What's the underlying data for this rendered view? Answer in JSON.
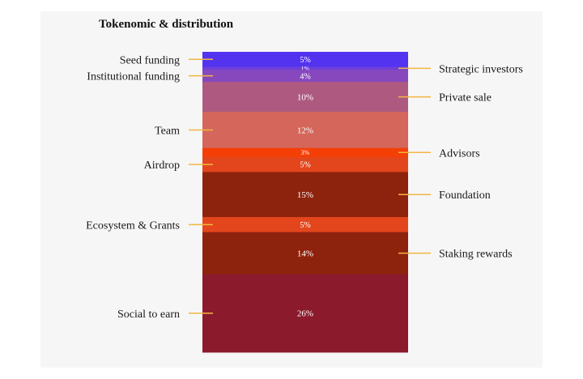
{
  "chart_data": {
    "type": "stacked-bar",
    "title": "Tokenomic & distribution",
    "unit": "%",
    "segments": [
      {
        "label": "Seed funding",
        "value": 5,
        "value_label": "5%",
        "side": "left",
        "color": "#5333f0"
      },
      {
        "label": "Strategic investors",
        "value": 1,
        "value_label": "1%",
        "side": "right",
        "color": "#6f3fd8"
      },
      {
        "label": "Institutional funding",
        "value": 4,
        "value_label": "4%",
        "side": "left",
        "color": "#8748bd"
      },
      {
        "label": "Private sale",
        "value": 10,
        "value_label": "10%",
        "side": "right",
        "color": "#ae5a80"
      },
      {
        "label": "Team",
        "value": 12,
        "value_label": "12%",
        "side": "left",
        "color": "#d4665c"
      },
      {
        "label": "Advisors",
        "value": 3,
        "value_label": "3%",
        "side": "right",
        "color": "#f43f07"
      },
      {
        "label": "Airdrop",
        "value": 5,
        "value_label": "5%",
        "side": "left",
        "color": "#e3461c"
      },
      {
        "label": "Foundation",
        "value": 15,
        "value_label": "15%",
        "side": "right",
        "color": "#8e230d"
      },
      {
        "label": "Ecosystem & Grants",
        "value": 5,
        "value_label": "5%",
        "side": "left",
        "color": "#e3461c"
      },
      {
        "label": "Staking rewards",
        "value": 14,
        "value_label": "14%",
        "side": "right",
        "color": "#8e230d"
      },
      {
        "label": "Social to earn",
        "value": 26,
        "value_label": "26%",
        "side": "left",
        "color": "#8b1a2c"
      }
    ],
    "connector_color": "#f2b640"
  }
}
